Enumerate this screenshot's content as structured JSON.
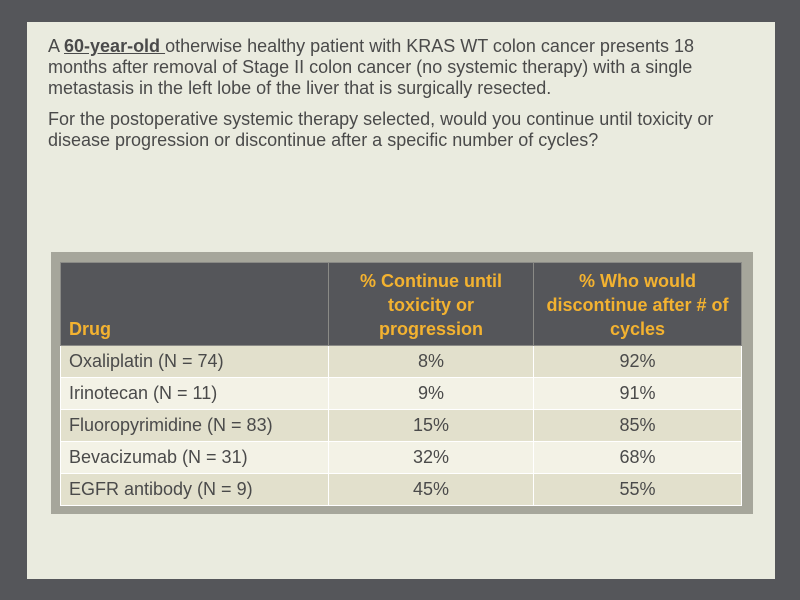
{
  "question": {
    "part1": "A ",
    "age": "60-year-old ",
    "part2": "otherwise healthy patient with KRAS WT colon cancer presents 18 months after removal of Stage II colon cancer (no systemic therapy) with a single metastasis in the left lobe of the liver that is surgically resected.",
    "paragraph2": "For the postoperative systemic therapy selected, would you continue until toxicity or disease progression or discontinue after a specific number of cycles?"
  },
  "table": {
    "headers": [
      "Drug",
      "% Continue until toxicity or progression",
      "% Who would discontinue after # of cycles"
    ],
    "rows": [
      [
        "Oxaliplatin (N = 74)",
        "8%",
        "92%"
      ],
      [
        "Irinotecan (N = 11)",
        "9%",
        "91%"
      ],
      [
        "Fluoropyrimidine (N = 83)",
        "15%",
        "85%"
      ],
      [
        "Bevacizumab (N = 31)",
        "32%",
        "68%"
      ],
      [
        "EGFR antibody (N = 9)",
        "45%",
        "55%"
      ]
    ]
  },
  "colors": {
    "background": "#55565a",
    "slide": "#eaebdf",
    "header_bg": "#55565a",
    "header_text": "#f3b230",
    "row_odd": "#e2e0cc",
    "row_even": "#f3f2e6"
  }
}
